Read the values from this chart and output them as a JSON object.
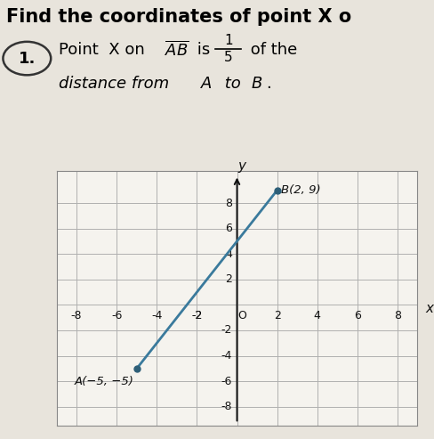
{
  "title": "Find the coordinates of point X o",
  "point_A": [
    -5,
    -5
  ],
  "point_B": [
    2,
    9
  ],
  "label_A": "A(−5, −5)",
  "label_B": "B(2, 9)",
  "line_color": "#3a7a9c",
  "point_color": "#2e5f78",
  "xlim": [
    -9,
    9
  ],
  "ylim": [
    -9.5,
    10.5
  ],
  "xticks": [
    -8,
    -6,
    -4,
    -2,
    2,
    4,
    6,
    8
  ],
  "yticks": [
    -8,
    -6,
    -4,
    -2,
    2,
    4,
    6,
    8
  ],
  "grid_color": "#b0b0b0",
  "bg_color": "#e8e4dc",
  "graph_bg": "#f5f3ee",
  "axes_color": "#111111",
  "title_fontsize": 15,
  "tick_fontsize": 9
}
